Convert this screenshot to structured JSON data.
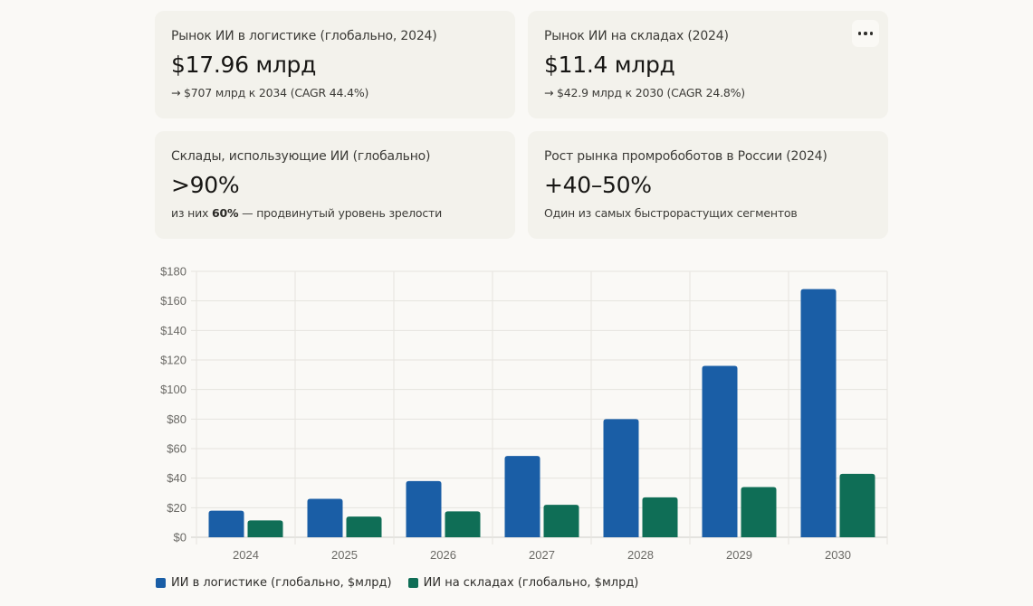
{
  "cards": [
    {
      "label": "Рынок ИИ в логистике (глобально, 2024)",
      "value": "$17.96 млрд",
      "sub": "→ $707 млрд к 2034 (CAGR 44.4%)"
    },
    {
      "label": "Рынок ИИ на складах (2024)",
      "value": "$11.4 млрд",
      "sub": "→ $42.9 млрд к 2030 (CAGR 24.8%)",
      "menu_icon": "more-horizontal-icon"
    },
    {
      "label": "Склады, использующие ИИ (глобально)",
      "value": ">90%",
      "sub_prefix": "из них ",
      "sub_bold": "60%",
      "sub_suffix": " — продвинутый уровень зрелости"
    },
    {
      "label": "Рост рынка промробоботов в России (2024)",
      "value": "+40–50%",
      "sub": "Один из самых быстрорастущих сегментов"
    }
  ],
  "chart_data": {
    "type": "bar",
    "title": "",
    "xlabel": "",
    "ylabel": "",
    "categories": [
      "2024",
      "2025",
      "2026",
      "2027",
      "2028",
      "2029",
      "2030"
    ],
    "series": [
      {
        "name": "ИИ в логистике (глобально, $млрд)",
        "color": "#1a5ea6",
        "values": [
          17.96,
          26,
          38,
          55,
          80,
          116,
          168
        ]
      },
      {
        "name": "ИИ на складах (глобально, $млрд)",
        "color": "#0f6e56",
        "values": [
          11.4,
          14,
          17.5,
          22,
          27,
          34,
          42.9
        ]
      }
    ],
    "ylim": [
      0,
      180
    ],
    "yticks": [
      0,
      20,
      40,
      60,
      80,
      100,
      120,
      140,
      160,
      180
    ],
    "ytick_prefix": "$",
    "grid": true,
    "legend_position": "bottom-left"
  }
}
